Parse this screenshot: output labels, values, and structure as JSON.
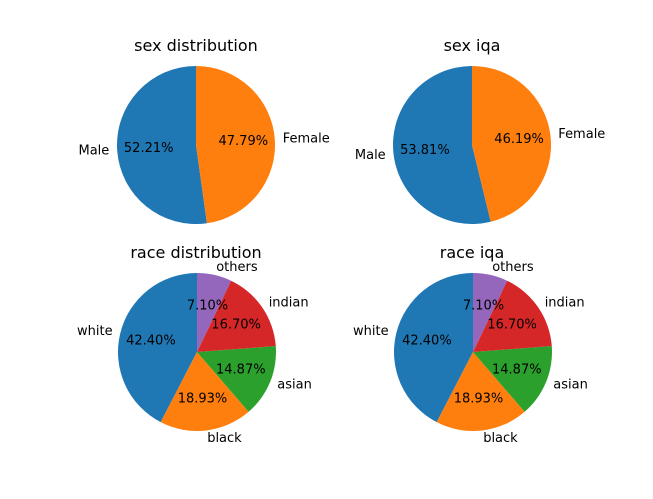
{
  "colors": {
    "blue": "#1f77b4",
    "orange": "#ff7f0e",
    "green": "#2ca02c",
    "red": "#d62728",
    "purple": "#9467bd"
  },
  "chart_data": [
    {
      "type": "pie",
      "title": "sex distribution",
      "start_angle_deg": 90,
      "counterclockwise": true,
      "slices": [
        {
          "label": "Male",
          "value": 52.21,
          "pct_label": "52.21%",
          "color": "#1f77b4"
        },
        {
          "label": "Female",
          "value": 47.79,
          "pct_label": "47.79%",
          "color": "#ff7f0e"
        }
      ]
    },
    {
      "type": "pie",
      "title": "sex iqa",
      "start_angle_deg": 90,
      "counterclockwise": true,
      "slices": [
        {
          "label": "Male",
          "value": 53.81,
          "pct_label": "53.81%",
          "color": "#1f77b4"
        },
        {
          "label": "Female",
          "value": 46.19,
          "pct_label": "46.19%",
          "color": "#ff7f0e"
        }
      ]
    },
    {
      "type": "pie",
      "title": "race distribution",
      "start_angle_deg": 90,
      "counterclockwise": true,
      "slices": [
        {
          "label": "white",
          "value": 42.4,
          "pct_label": "42.40%",
          "color": "#1f77b4"
        },
        {
          "label": "black",
          "value": 18.93,
          "pct_label": "18.93%",
          "color": "#ff7f0e"
        },
        {
          "label": "asian",
          "value": 14.87,
          "pct_label": "14.87%",
          "color": "#2ca02c"
        },
        {
          "label": "indian",
          "value": 16.7,
          "pct_label": "16.70%",
          "color": "#d62728"
        },
        {
          "label": "others",
          "value": 7.1,
          "pct_label": "7.10%",
          "color": "#9467bd"
        }
      ]
    },
    {
      "type": "pie",
      "title": "race iqa",
      "start_angle_deg": 90,
      "counterclockwise": true,
      "slices": [
        {
          "label": "white",
          "value": 42.4,
          "pct_label": "42.40%",
          "color": "#1f77b4"
        },
        {
          "label": "black",
          "value": 18.93,
          "pct_label": "18.93%",
          "color": "#ff7f0e"
        },
        {
          "label": "asian",
          "value": 14.87,
          "pct_label": "14.87%",
          "color": "#2ca02c"
        },
        {
          "label": "indian",
          "value": 16.7,
          "pct_label": "16.70%",
          "color": "#d62728"
        },
        {
          "label": "others",
          "value": 7.1,
          "pct_label": "7.10%",
          "color": "#9467bd"
        }
      ]
    }
  ]
}
